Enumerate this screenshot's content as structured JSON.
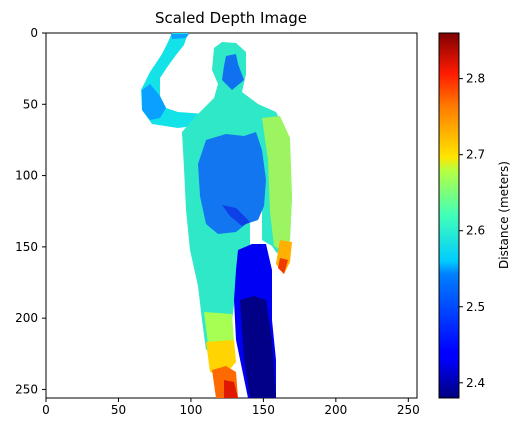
{
  "chart_data": {
    "type": "heatmap",
    "title": "Scaled Depth Image",
    "xlabel": "",
    "ylabel": "",
    "xlim": [
      0,
      256
    ],
    "ylim": [
      256,
      0
    ],
    "x_ticks": [
      "0",
      "50",
      "100",
      "150",
      "200",
      "250"
    ],
    "y_ticks": [
      "0",
      "50",
      "100",
      "150",
      "200",
      "250"
    ],
    "background_value": "none (white)",
    "colormap": "jet",
    "colorbar": {
      "label": "Distance (meters)",
      "range": [
        2.38,
        2.86
      ],
      "ticks": [
        "2.4",
        "2.5",
        "2.6",
        "2.7",
        "2.8"
      ]
    },
    "regions": [
      {
        "name": "raised arm",
        "approx_distance_m": 2.52
      },
      {
        "name": "head",
        "approx_distance_m": 2.55
      },
      {
        "name": "torso",
        "approx_distance_m": 2.48
      },
      {
        "name": "left leg",
        "approx_distance_m": 2.55
      },
      {
        "name": "right leg",
        "approx_distance_m": 2.4
      },
      {
        "name": "left foot",
        "approx_distance_m": 2.75
      },
      {
        "name": "right hand",
        "approx_distance_m": 2.72
      }
    ]
  }
}
